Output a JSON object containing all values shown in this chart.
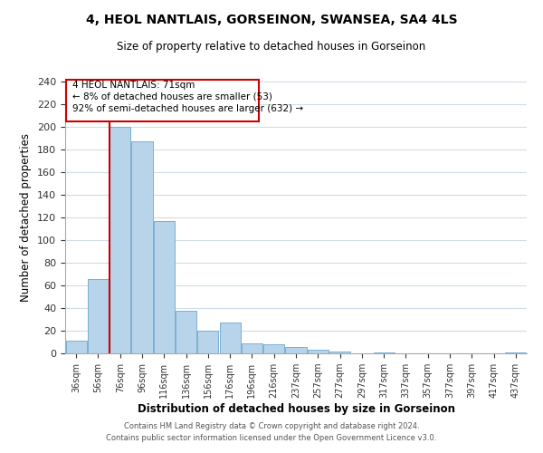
{
  "title": "4, HEOL NANTLAIS, GORSEINON, SWANSEA, SA4 4LS",
  "subtitle": "Size of property relative to detached houses in Gorseinon",
  "xlabel": "Distribution of detached houses by size in Gorseinon",
  "ylabel": "Number of detached properties",
  "bin_labels": [
    "36sqm",
    "56sqm",
    "76sqm",
    "96sqm",
    "116sqm",
    "136sqm",
    "156sqm",
    "176sqm",
    "196sqm",
    "216sqm",
    "237sqm",
    "257sqm",
    "277sqm",
    "297sqm",
    "317sqm",
    "337sqm",
    "357sqm",
    "377sqm",
    "397sqm",
    "417sqm",
    "437sqm"
  ],
  "bar_heights": [
    11,
    66,
    200,
    187,
    117,
    38,
    20,
    27,
    9,
    8,
    6,
    3,
    2,
    0,
    1,
    0,
    0,
    0,
    0,
    0,
    1
  ],
  "bar_color": "#b8d4ea",
  "bar_edge_color": "#7aafd4",
  "vertical_line_color": "#cc0000",
  "annotation_line1": "4 HEOL NANTLAIS: 71sqm",
  "annotation_line2": "← 8% of detached houses are smaller (53)",
  "annotation_line3": "92% of semi-detached houses are larger (632) →",
  "annotation_box_edge_color": "#cc0000",
  "ylim": [
    0,
    240
  ],
  "yticks": [
    0,
    20,
    40,
    60,
    80,
    100,
    120,
    140,
    160,
    180,
    200,
    220,
    240
  ],
  "footnote_line1": "Contains HM Land Registry data © Crown copyright and database right 2024.",
  "footnote_line2": "Contains public sector information licensed under the Open Government Licence v3.0.",
  "background_color": "#ffffff",
  "grid_color": "#d0dce8"
}
